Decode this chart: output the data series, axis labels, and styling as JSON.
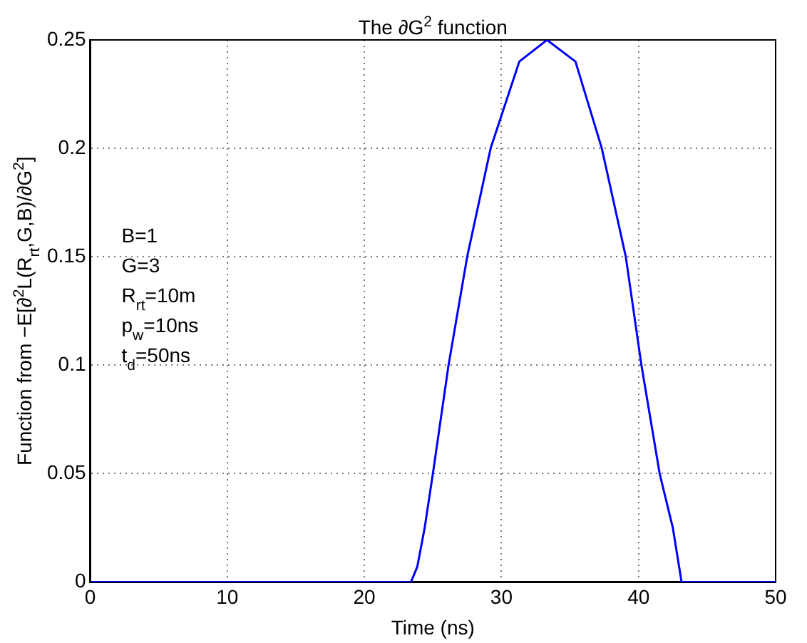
{
  "chart_data": {
    "type": "line",
    "title": "The ∂G$^{2}$ function",
    "xlabel": "Time (ns)",
    "ylabel": "Function from −E[∂$^{2}$L(R$_{rt}$,G,B)/∂G$^{2}$]",
    "annotations": [
      "B=1",
      "G=3",
      "R$_{rt}$=10m",
      "p$_{w}$=10ns",
      "t$_{d}$=50ns"
    ],
    "series": [
      {
        "color": "#0000ff",
        "x": [
          0,
          23.4,
          23.86,
          24.4,
          25.0,
          26.14,
          27.5,
          29.21,
          31.3,
          33.32,
          35.4,
          37.32,
          39.07,
          40.21,
          41.54,
          42.5,
          43.14,
          50
        ],
        "values": [
          0,
          0,
          0.007,
          0.025,
          0.05,
          0.1,
          0.15,
          0.2,
          0.24,
          0.25,
          0.24,
          0.2,
          0.15,
          0.1,
          0.05,
          0.025,
          0,
          0
        ]
      }
    ],
    "xlim": [
      0,
      50
    ],
    "xticks": [
      0,
      10,
      20,
      30,
      40,
      50
    ],
    "ylim": [
      0,
      0.25
    ],
    "yticks": [
      0,
      0.05,
      0.1,
      0.15,
      0.2,
      0.25
    ],
    "grid": true,
    "legend": false,
    "marker": "none",
    "line_style": "solid"
  }
}
